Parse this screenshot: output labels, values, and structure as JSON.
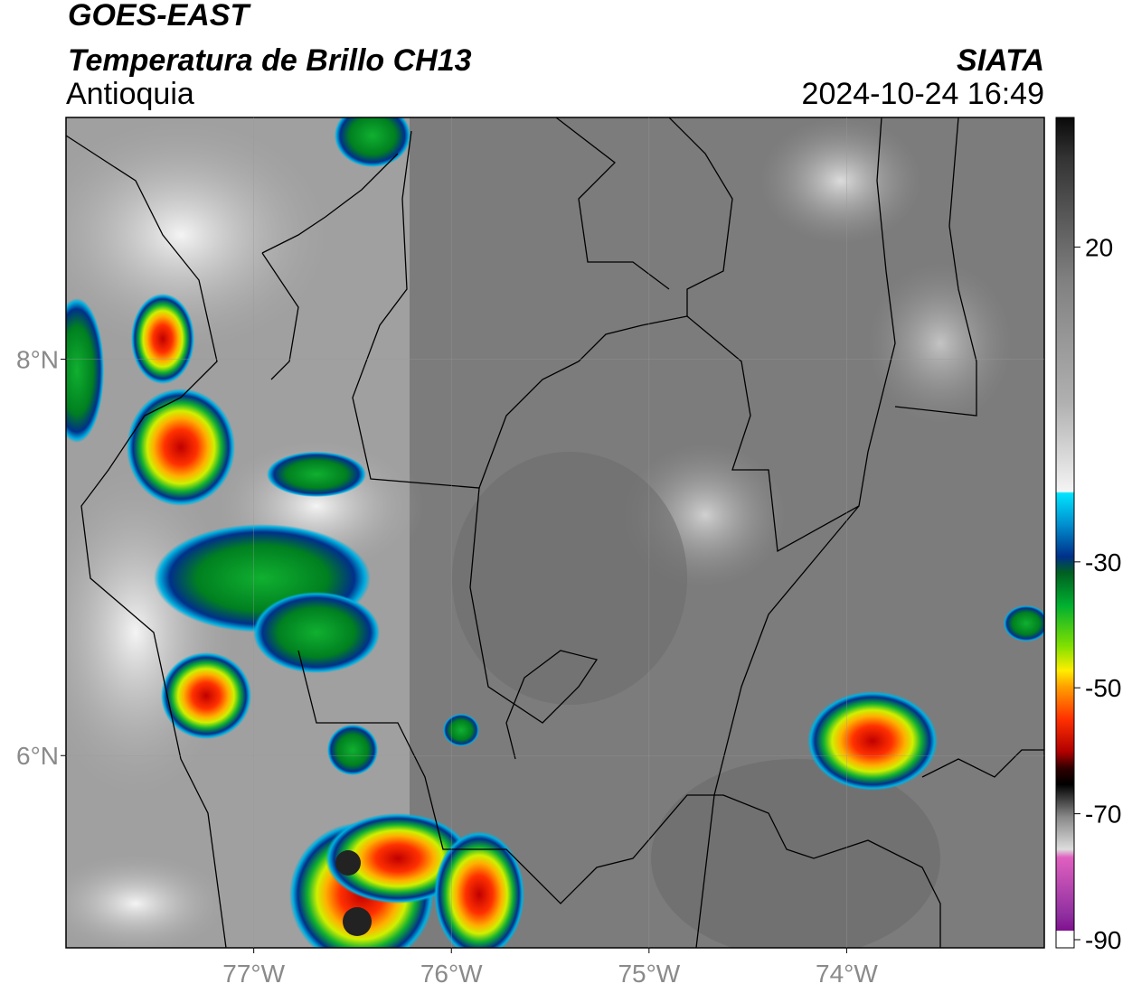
{
  "header": {
    "satellite": "GOES-EAST",
    "product": "Temperatura de Brillo CH13",
    "region": "Antioquia",
    "organization": "SIATA",
    "timestamp": "2024-10-24 16:49"
  },
  "map": {
    "lonlim": [
      -77.95,
      -73.0
    ],
    "latlim": [
      5.03,
      9.22
    ],
    "lon_ticks": [
      {
        "value": -77,
        "label": "77°W"
      },
      {
        "value": -76,
        "label": "76°W"
      },
      {
        "value": -75,
        "label": "75°W"
      },
      {
        "value": -74,
        "label": "74°W"
      }
    ],
    "lat_ticks": [
      {
        "value": 8,
        "label": "8°N"
      },
      {
        "value": 6,
        "label": "6°N"
      }
    ],
    "grid": true
  },
  "colorbar": {
    "lim": [
      -90,
      40
    ],
    "ticks": [
      20,
      -30,
      -50,
      -70,
      -90
    ]
  }
}
